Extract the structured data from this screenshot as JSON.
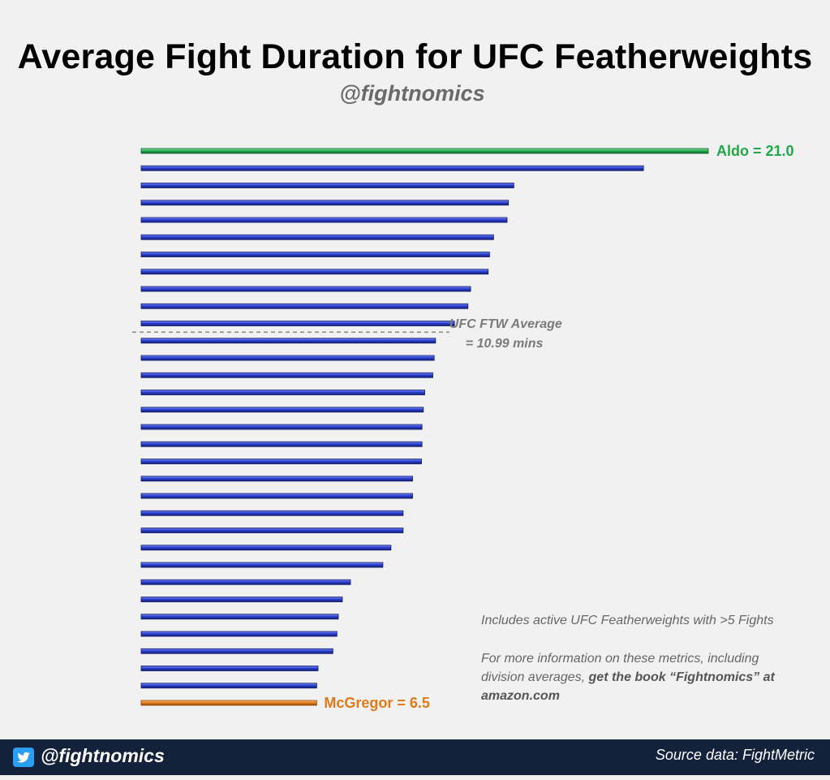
{
  "title": "Average Fight Duration for UFC Featherweights",
  "subtitle": "@fightnomics",
  "chart_data": {
    "type": "bar",
    "orientation": "horizontal",
    "title": "Average Fight Duration for UFC Featherweights",
    "xlabel": "",
    "ylabel": "",
    "values": [
      21.0,
      18.6,
      13.8,
      13.6,
      13.55,
      13.05,
      12.9,
      12.85,
      12.2,
      12.1,
      11.6,
      10.9,
      10.85,
      10.8,
      10.5,
      10.45,
      10.4,
      10.4,
      10.38,
      10.05,
      10.05,
      9.7,
      9.7,
      9.25,
      8.95,
      7.75,
      7.45,
      7.3,
      7.25,
      7.1,
      6.55,
      6.5,
      6.5
    ],
    "highlight": [
      {
        "index": 0,
        "label": "Aldo = 21.0",
        "color": "#1ea84a"
      },
      {
        "index": 32,
        "label": "McGregor = 6.5",
        "color": "#e07b1a"
      }
    ],
    "average": {
      "value": 10.99,
      "line1": "UFC FTW Average",
      "line2": "= 10.99 mins"
    },
    "xlim": [
      0,
      21.0
    ],
    "bar_color": "#2b3fc9",
    "grid": false,
    "legend": "none"
  },
  "notes": {
    "line1": "Includes active UFC Featherweights with >5 Fights",
    "line2a": "For more information on these metrics, including",
    "line2b_plain": "division averages, ",
    "line2b_bold": "get the book “Fightnomics” at",
    "line2c_bold": "amazon.com"
  },
  "footer": {
    "handle": "@fightnomics",
    "source": "Source data: FightMetric",
    "icon": "twitter-bird-icon",
    "bg": "#14213a"
  }
}
